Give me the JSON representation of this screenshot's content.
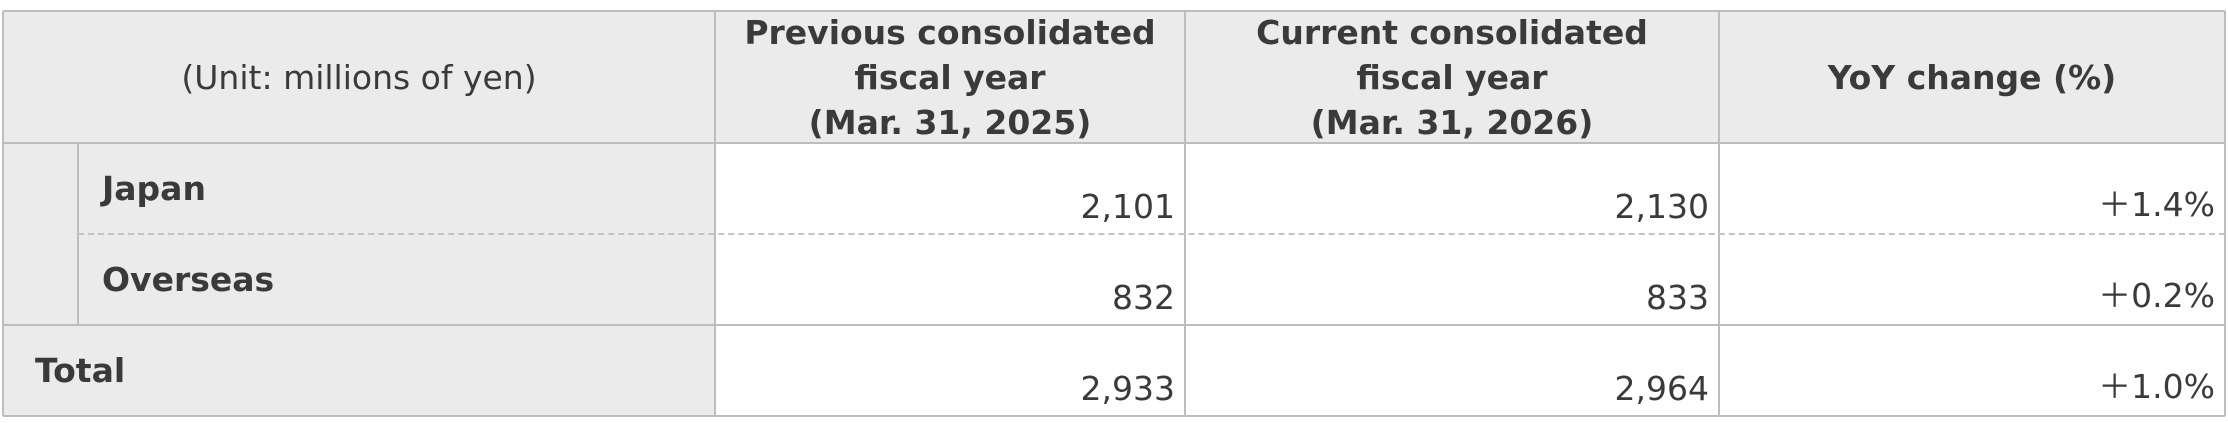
{
  "header": {
    "unit": "(Unit: millions of yen)",
    "columns": [
      "Previous consolidated\nfiscal year\n(Mar. 31, 2025)",
      "Current consolidated\nfiscal year\n(Mar. 31, 2026)",
      "YoY change (%)"
    ]
  },
  "table": {
    "rows": [
      [
        "Japan",
        "2,101",
        "2,130",
        "＋1.4%"
      ],
      [
        "Overseas",
        "832",
        "833",
        "＋0.2%"
      ],
      [
        "Total",
        "2,933",
        "2,964",
        "＋1.0%"
      ]
    ]
  }
}
